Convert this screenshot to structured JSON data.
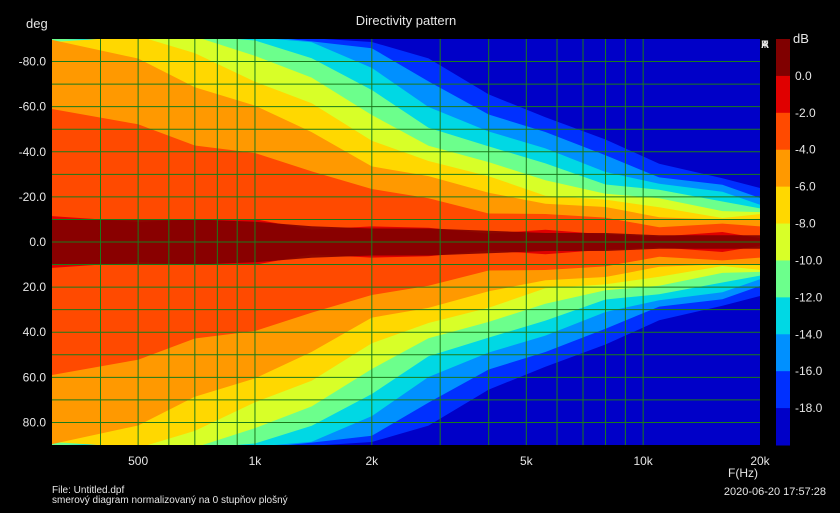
{
  "chart_data": {
    "type": "heatmap",
    "title": "Directivity pattern",
    "xlabel": "F(Hz)",
    "ylabel": "deg",
    "x_scale": "log",
    "xlim": [
      300,
      20000
    ],
    "ylim": [
      -90,
      90
    ],
    "x_ticks": [
      {
        "value": 500,
        "label": "500"
      },
      {
        "value": 1000,
        "label": "1k"
      },
      {
        "value": 2000,
        "label": "2k"
      },
      {
        "value": 5000,
        "label": "5k"
      },
      {
        "value": 10000,
        "label": "10k"
      },
      {
        "value": 20000,
        "label": "20k"
      }
    ],
    "y_ticks": [
      {
        "value": -80,
        "label": "-80.0"
      },
      {
        "value": -60,
        "label": "-60.0"
      },
      {
        "value": -40,
        "label": "-40.0"
      },
      {
        "value": -20,
        "label": "-20.0"
      },
      {
        "value": 0,
        "label": "0.0"
      },
      {
        "value": 20,
        "label": "20.0"
      },
      {
        "value": 40,
        "label": "40.0"
      },
      {
        "value": 60,
        "label": "60.0"
      },
      {
        "value": 80,
        "label": "80.0"
      }
    ],
    "colorbar": {
      "unit": "dB",
      "levels": [
        0,
        -2,
        -4,
        -6,
        -8,
        -10,
        -12,
        -14,
        -16,
        -18
      ],
      "labels": [
        "0.0",
        "-2.0",
        "-4.0",
        "-6.0",
        "-8.0",
        "-10.0",
        "-12.0",
        "-14.0",
        "-16.0",
        "-18.0"
      ],
      "colors": [
        "#800000",
        "#e00000",
        "#ff4a00",
        "#ff9900",
        "#ffd800",
        "#d8ff28",
        "#6cff8c",
        "#00d8e4",
        "#0090ff",
        "#0030ff",
        "#0000c8"
      ]
    },
    "frequency_hz": [
      300,
      500,
      700,
      1000,
      1400,
      2000,
      2800,
      4000,
      5600,
      8000,
      11000,
      16000,
      20000
    ],
    "beamwidth_deg": {
      "description_levels": [
        "-2",
        "-4",
        "-6",
        "-8",
        "-10",
        "-12",
        "-14",
        "-16",
        "-18"
      ],
      "-2": [
        10,
        10,
        10,
        9,
        7,
        6,
        6,
        5,
        4,
        4,
        3,
        3,
        3
      ],
      "-4": [
        58,
        52,
        44,
        38,
        32,
        24,
        18,
        14,
        12,
        10,
        8,
        7,
        7
      ],
      "-6": [
        90,
        80,
        70,
        60,
        48,
        35,
        28,
        22,
        18,
        14,
        12,
        10,
        9
      ],
      "-8": [
        90,
        90,
        84,
        72,
        60,
        46,
        36,
        28,
        22,
        18,
        15,
        12,
        11
      ],
      "-10": [
        90,
        90,
        90,
        84,
        72,
        56,
        44,
        34,
        28,
        22,
        18,
        15,
        13
      ],
      "-12": [
        90,
        90,
        90,
        90,
        82,
        66,
        52,
        42,
        34,
        27,
        22,
        18,
        16
      ],
      "-14": [
        90,
        90,
        90,
        90,
        90,
        76,
        60,
        50,
        40,
        32,
        26,
        21,
        18
      ],
      "-16": [
        90,
        90,
        90,
        90,
        90,
        86,
        70,
        58,
        48,
        38,
        30,
        24,
        20
      ],
      "-18": [
        90,
        90,
        90,
        90,
        90,
        90,
        80,
        66,
        56,
        44,
        36,
        28,
        23
      ]
    }
  },
  "side_label": [
    "A",
    "R",
    "T",
    "A"
  ],
  "footer": {
    "file": "File: Untitled.dpf",
    "description": "smerový diagram normalizovaný na 0 stupňov plošný",
    "timestamp": "2020-06-20   17:57:28"
  }
}
